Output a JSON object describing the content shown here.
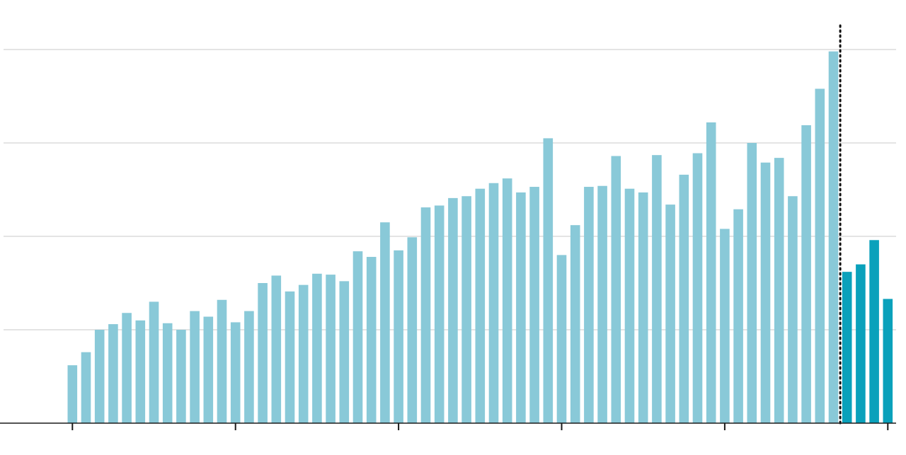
{
  "chart_data": {
    "type": "bar",
    "title": "",
    "xlabel": "",
    "ylabel": "",
    "grid": true,
    "ylim": [
      0,
      4.2
    ],
    "gridlines": [
      1,
      2,
      3,
      4
    ],
    "colors": {
      "historical": "#89c9d8",
      "highlight": "#0aa1bb",
      "grid": "#dcdcdc",
      "axis": "#1a1a1a"
    },
    "values": [
      0.62,
      0.76,
      1.0,
      1.06,
      1.18,
      1.1,
      1.3,
      1.07,
      1.0,
      1.2,
      1.14,
      1.32,
      1.08,
      1.2,
      1.5,
      1.58,
      1.41,
      1.48,
      1.6,
      1.59,
      1.52,
      1.84,
      1.78,
      2.15,
      1.85,
      1.99,
      2.31,
      2.33,
      2.41,
      2.43,
      2.51,
      2.57,
      2.62,
      2.47,
      2.53,
      3.05,
      1.8,
      2.12,
      2.53,
      2.54,
      2.86,
      2.51,
      2.47,
      2.87,
      2.34,
      2.66,
      2.89,
      3.22,
      2.08,
      2.29,
      3.0,
      2.79,
      2.84,
      2.43,
      3.19,
      3.58,
      3.98,
      1.62,
      1.7,
      1.96,
      1.33
    ],
    "highlight_from_index": 57,
    "marker_after_index": 56,
    "x_ticks_at_index": [
      0,
      12,
      24,
      36,
      48,
      60
    ]
  }
}
